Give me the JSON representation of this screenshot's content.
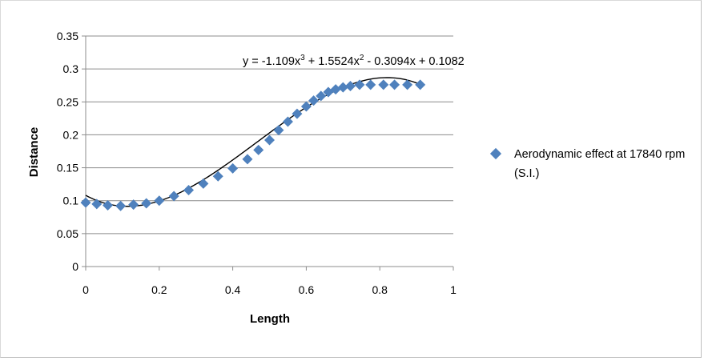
{
  "chart_data": {
    "type": "scatter",
    "xlabel": "Length",
    "ylabel": "Distance",
    "xlim": [
      0,
      1
    ],
    "ylim": [
      0,
      0.35
    ],
    "x_ticks": [
      "0",
      "0.2",
      "0.4",
      "0.6",
      "0.8",
      "1"
    ],
    "y_ticks": [
      "0",
      "0.05",
      "0.1",
      "0.15",
      "0.2",
      "0.25",
      "0.3",
      "0.35"
    ],
    "grid": "horizontal",
    "legend": "right",
    "marker_color": "#4f81bd",
    "series": [
      {
        "name": "Aerodynamic effect at 17840 rpm (S.I.)",
        "points": [
          [
            0.0,
            0.097
          ],
          [
            0.03,
            0.095
          ],
          [
            0.06,
            0.093
          ],
          [
            0.095,
            0.092
          ],
          [
            0.13,
            0.094
          ],
          [
            0.165,
            0.096
          ],
          [
            0.2,
            0.1
          ],
          [
            0.24,
            0.107
          ],
          [
            0.28,
            0.116
          ],
          [
            0.32,
            0.126
          ],
          [
            0.36,
            0.137
          ],
          [
            0.4,
            0.149
          ],
          [
            0.44,
            0.163
          ],
          [
            0.47,
            0.177
          ],
          [
            0.5,
            0.192
          ],
          [
            0.525,
            0.207
          ],
          [
            0.55,
            0.22
          ],
          [
            0.575,
            0.232
          ],
          [
            0.6,
            0.243
          ],
          [
            0.62,
            0.252
          ],
          [
            0.64,
            0.259
          ],
          [
            0.66,
            0.265
          ],
          [
            0.68,
            0.269
          ],
          [
            0.7,
            0.272
          ],
          [
            0.72,
            0.274
          ],
          [
            0.745,
            0.276
          ],
          [
            0.775,
            0.276
          ],
          [
            0.81,
            0.276
          ],
          [
            0.84,
            0.276
          ],
          [
            0.875,
            0.276
          ],
          [
            0.91,
            0.276
          ]
        ]
      }
    ],
    "trendline": {
      "type": "polynomial",
      "coefficients": [
        -1.109,
        1.5524,
        -0.3094,
        0.1082
      ],
      "x_range": [
        0,
        0.91
      ],
      "equation_parts": [
        "y = -1.109x",
        "3",
        " + 1.5524x",
        "2",
        " - 0.3094x + 0.1082"
      ]
    }
  }
}
